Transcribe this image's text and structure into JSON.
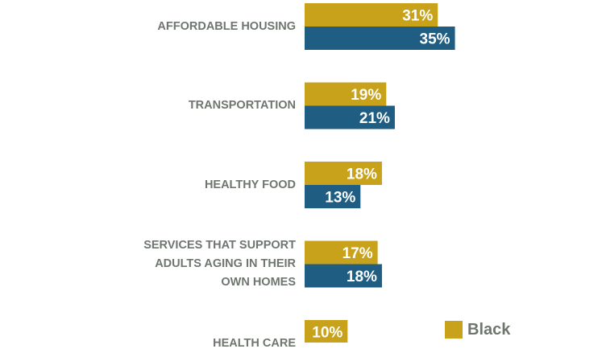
{
  "chart_data": {
    "type": "bar",
    "orientation": "horizontal",
    "categories": [
      "AFFORDABLE HOUSING",
      "TRANSPORTATION",
      "HEALTHY FOOD",
      "SERVICES THAT SUPPORT ADULTS AGING IN THEIR OWN HOMES",
      "HEALTH CARE"
    ],
    "category_lines": [
      [
        "AFFORDABLE HOUSING"
      ],
      [
        "TRANSPORTATION"
      ],
      [
        "HEALTHY FOOD"
      ],
      [
        "SERVICES THAT SUPPORT",
        "ADULTS AGING IN THEIR",
        "OWN HOMES"
      ],
      [
        "HEALTH CARE"
      ]
    ],
    "series": [
      {
        "name": "Black",
        "color": "#c9a21c",
        "values": [
          31,
          19,
          18,
          17,
          10
        ]
      },
      {
        "name": "",
        "color": "#1f5e82",
        "values": [
          35,
          21,
          13,
          18,
          null
        ]
      }
    ],
    "value_suffix": "%",
    "legend": {
      "position": "bottom-right",
      "entries": [
        "Black"
      ]
    }
  }
}
